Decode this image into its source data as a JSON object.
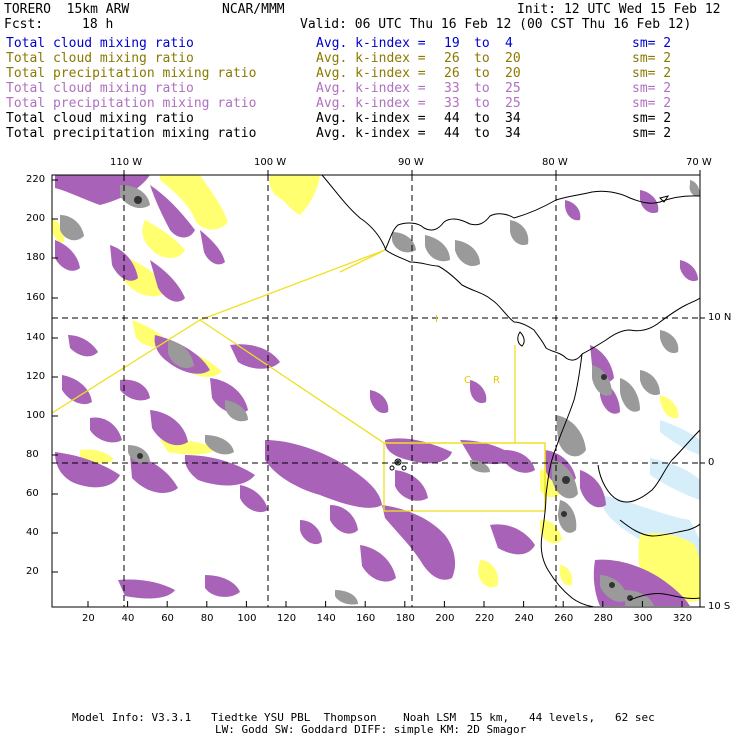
{
  "header": {
    "model": "TORERO  15km ARW",
    "center": "NCAR/MMM",
    "init": "Init: 12 UTC Wed 15 Feb 12",
    "fcst_label": "Fcst:",
    "fcst_value": "18 h",
    "valid": "Valid: 06 UTC Thu 16 Feb 12 (00 CST Thu 16 Feb 12)"
  },
  "legend": [
    {
      "field": "Total cloud mixing ratio",
      "index_label": "Avg. k-index =",
      "from": "19",
      "to_word": "to",
      "to": "4",
      "sm": "sm= 2",
      "color": "#0000cc"
    },
    {
      "field": "Total cloud mixing ratio",
      "index_label": "Avg. k-index =",
      "from": "26",
      "to_word": "to",
      "to": "20",
      "sm": "sm= 2",
      "color": "#8a7a00"
    },
    {
      "field": "Total precipitation mixing ratio",
      "index_label": "Avg. k-index =",
      "from": "26",
      "to_word": "to",
      "to": "20",
      "sm": "sm= 2",
      "color": "#8a7a00"
    },
    {
      "field": "Total cloud mixing ratio",
      "index_label": "Avg. k-index =",
      "from": "33",
      "to_word": "to",
      "to": "25",
      "sm": "sm= 2",
      "color": "#b070c0"
    },
    {
      "field": "Total precipitation mixing ratio",
      "index_label": "Avg. k-index =",
      "from": "33",
      "to_word": "to",
      "to": "25",
      "sm": "sm= 2",
      "color": "#b070c0"
    },
    {
      "field": "Total cloud mixing ratio",
      "index_label": "Avg. k-index =",
      "from": "44",
      "to_word": "to",
      "to": "34",
      "sm": "sm= 2",
      "color": "#000000"
    },
    {
      "field": "Total precipitation mixing ratio",
      "index_label": "Avg. k-index =",
      "from": "44",
      "to_word": "to",
      "to": "34",
      "sm": "sm= 2",
      "color": "#000000"
    }
  ],
  "axes": {
    "top_lon": [
      "110 W",
      "100 W",
      "90 W",
      "80 W",
      "70 W"
    ],
    "right_lat": [
      "10 N",
      "0",
      "10 S"
    ],
    "left_ticks": [
      "220",
      "200",
      "180",
      "160",
      "140",
      "120",
      "100",
      "80",
      "60",
      "40",
      "20"
    ],
    "bottom_ticks": [
      "20",
      "40",
      "60",
      "80",
      "100",
      "120",
      "140",
      "160",
      "180",
      "200",
      "220",
      "240",
      "260",
      "280",
      "300",
      "320"
    ]
  },
  "map_labels": {
    "letter_c": "C",
    "letter_r": "R",
    "letter_i": "I"
  },
  "colors": {
    "purple": "#a862b8",
    "yellow": "#ffff70",
    "gray": "#9a9a9a",
    "dark_gray": "#333333",
    "light_blue": "#d6eefa",
    "domain_line": "#f0e020"
  },
  "footer": {
    "line1": "Model Info: V3.3.1   Tiedtke YSU PBL  Thompson    Noah LSM  15 km,   44 levels,   62 sec",
    "line2": "LW: Godd SW: Goddard DIFF: simple KM: 2D Smagor"
  }
}
